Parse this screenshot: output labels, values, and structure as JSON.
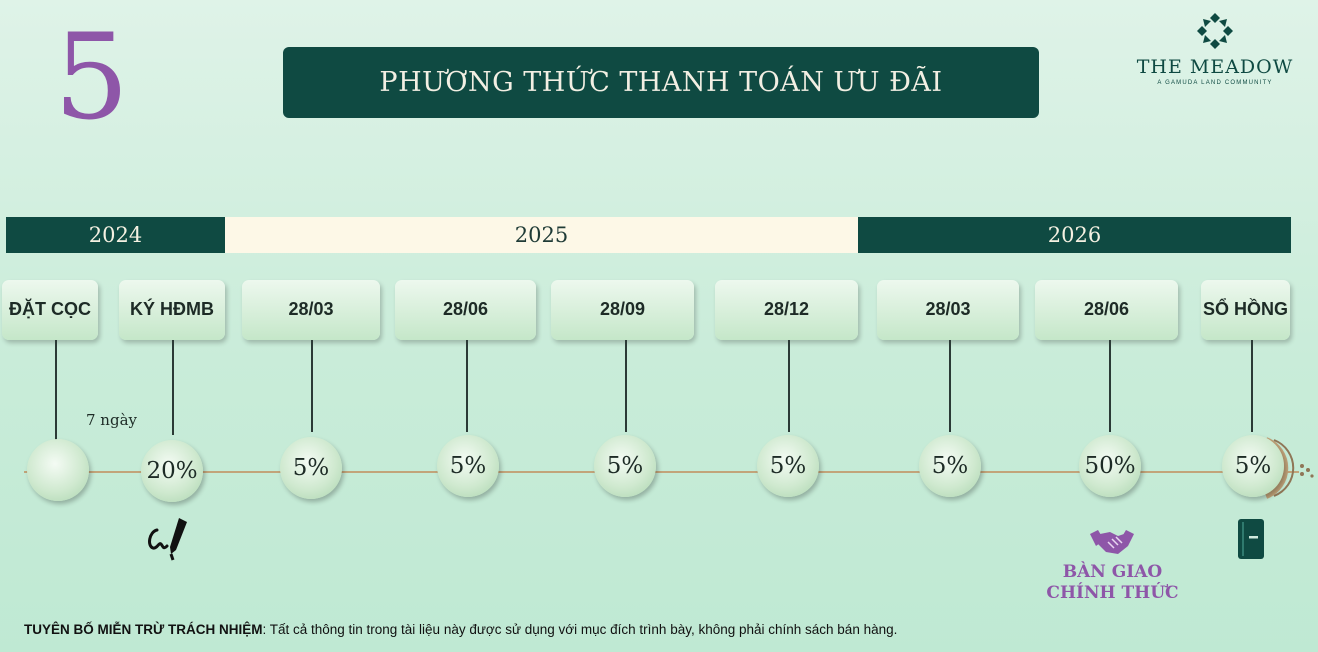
{
  "section_number": "5",
  "title": "PHƯƠNG THỨC THANH TOÁN ƯU ĐÃI",
  "logo": {
    "name": "THE MEADOW",
    "tagline": "A GAMUDA LAND COMMUNITY",
    "icon": "meadow-x-icon"
  },
  "years": [
    {
      "label": "2024"
    },
    {
      "label": "2025"
    },
    {
      "label": "2026"
    }
  ],
  "milestones": [
    {
      "label": "ĐẶT CỌC",
      "percent": ""
    },
    {
      "label": "KÝ HĐMB",
      "percent": "20%"
    },
    {
      "label": "28/03",
      "percent": "5%"
    },
    {
      "label": "28/06",
      "percent": "5%"
    },
    {
      "label": "28/09",
      "percent": "5%"
    },
    {
      "label": "28/12",
      "percent": "5%"
    },
    {
      "label": "28/03",
      "percent": "5%"
    },
    {
      "label": "28/06",
      "percent": "50%"
    },
    {
      "label": "SỔ HỒNG",
      "percent": "5%"
    }
  ],
  "deposit_gap": "7 ngày",
  "handover_label": "BÀN GIAO CHÍNH THỨC",
  "icons": [
    "signature-icon",
    "handshake-icon",
    "book-icon"
  ],
  "colors": {
    "accent": "#8e56a8",
    "dark_green": "#0f4a42",
    "cream": "#fdf8e7",
    "axis": "#c2a47a"
  },
  "disclaimer": {
    "label": "TUYÊN BỐ MIỄN TRỪ TRÁCH NHIỆM",
    "text": ": Tất cả thông tin trong tài liệu này được sử dụng với mục đích trình bày, không phải chính sách bán hàng."
  }
}
